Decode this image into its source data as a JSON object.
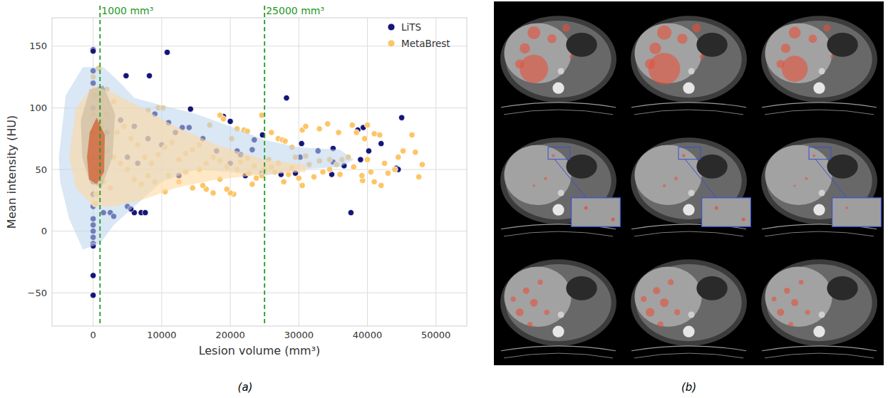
{
  "chart_data": {
    "type": "scatter",
    "x_label": "Lesion volume (mm³)",
    "y_label": "Mean intensity (HU)",
    "xlim": [
      -6000,
      54500
    ],
    "ylim": [
      -77,
      173
    ],
    "xticks": [
      0,
      10000,
      20000,
      30000,
      40000,
      50000
    ],
    "yticks": [
      {
        "value": -50,
        "label": "−50"
      },
      0,
      50,
      100,
      150
    ],
    "grid": true,
    "legend": "upper right",
    "annotations": [
      {
        "x": 1000,
        "label": "1000 mm³",
        "color": "#1f9a1f",
        "line_style": "dashed"
      },
      {
        "x": 25000,
        "label": "25000 mm³",
        "color": "#1f9a1f",
        "line_style": "dashed"
      }
    ],
    "series": [
      {
        "name": "LiTS",
        "color": "#15157a",
        "marker": "circle",
        "x": [
          0,
          0,
          10800,
          4800,
          8200,
          14200,
          19000,
          20000,
          28200,
          37600,
          0,
          0,
          45000,
          44200,
          44500,
          42000,
          40200,
          39400,
          38600,
          39000,
          36600,
          34800,
          35000,
          35000,
          32800,
          30200,
          29500,
          27400,
          24600,
          24700,
          23500,
          23200,
          22200,
          21000,
          21500,
          20000,
          30400,
          5000,
          6000,
          7000,
          7600,
          5500,
          2500,
          3000,
          1500,
          0,
          0,
          0,
          0,
          0,
          0,
          0,
          0,
          0,
          0,
          0,
          0,
          0,
          0,
          2000,
          4000,
          6000,
          8000,
          10000,
          12000,
          13000,
          14000,
          11000,
          9000,
          5000,
          6500,
          12500,
          16000,
          18000
        ],
        "values": [
          147,
          146,
          145,
          126,
          126,
          99,
          93,
          89,
          108,
          15,
          -36,
          -52,
          92,
          51,
          50,
          71,
          65,
          84,
          82,
          58,
          53,
          46,
          67,
          56,
          65,
          60,
          47,
          46,
          47,
          78,
          74,
          66,
          45,
          65,
          62,
          55,
          71,
          20,
          15,
          15,
          15,
          18,
          15,
          12,
          15,
          0,
          5,
          10,
          -5,
          -10,
          -12,
          20,
          30,
          40,
          60,
          80,
          100,
          120,
          130,
          80,
          90,
          85,
          75,
          70,
          80,
          84,
          84,
          88,
          95,
          60,
          55,
          45,
          75,
          65
        ],
        "density_regions": [
          [
            [
              -5000,
              60
            ],
            [
              -4000,
              110
            ],
            [
              -1500,
              133
            ],
            [
              1500,
              133
            ],
            [
              4000,
              120
            ],
            [
              6000,
              108
            ],
            [
              10000,
              102
            ],
            [
              15000,
              95
            ],
            [
              20000,
              85
            ],
            [
              25000,
              74
            ],
            [
              30000,
              68
            ],
            [
              36000,
              66
            ],
            [
              38000,
              58
            ],
            [
              36000,
              52
            ],
            [
              30000,
              50
            ],
            [
              25000,
              45
            ],
            [
              20000,
              48
            ],
            [
              15000,
              50
            ],
            [
              10000,
              40
            ],
            [
              6000,
              20
            ],
            [
              3000,
              5
            ],
            [
              1000,
              -10
            ],
            [
              -1500,
              -15
            ],
            [
              -3500,
              10
            ],
            [
              -4800,
              40
            ]
          ],
          [
            [
              -1800,
              90
            ],
            [
              -500,
              115
            ],
            [
              1500,
              118
            ],
            [
              3200,
              95
            ],
            [
              2800,
              60
            ],
            [
              1200,
              35
            ],
            [
              -500,
              40
            ],
            [
              -1600,
              60
            ]
          ]
        ]
      },
      {
        "name": "MetaBrest",
        "color": "#fcc566",
        "marker": "circle",
        "x": [
          800,
          1000,
          0,
          2000,
          3000,
          9500,
          10200,
          8000,
          17000,
          18500,
          19000,
          21000,
          22000,
          22500,
          24600,
          26000,
          27000,
          27600,
          28000,
          29000,
          30500,
          31000,
          33000,
          34200,
          35800,
          37800,
          38400,
          39600,
          40000,
          41000,
          41800,
          46500,
          47000,
          45200,
          48000,
          47500,
          44000,
          43000,
          42000,
          41000,
          40500,
          39300,
          39200,
          37200,
          36300,
          35500,
          34500,
          33000,
          32200,
          31500,
          30500,
          30000,
          28500,
          27800,
          26500,
          25600,
          24600,
          23800,
          23200,
          22700,
          21000,
          20500,
          20000,
          20200,
          19500,
          18500,
          17500,
          16500,
          16000,
          15500,
          14500,
          13500,
          12500,
          11000,
          10500,
          9000,
          8000,
          7000,
          6000,
          5000,
          4000,
          3000,
          2000,
          1000,
          500,
          1500,
          2500,
          3500,
          4500,
          5500,
          6500,
          7500,
          8500,
          9500,
          10500,
          11500,
          12500,
          13500,
          14500,
          15500,
          16500,
          17500,
          18500,
          19500,
          21500,
          22500,
          23500,
          25000,
          26000,
          27000,
          29000,
          29500,
          31000,
          33500,
          34500,
          36000,
          38000,
          40000,
          42500,
          44500,
          1000,
          2000,
          500,
          300,
          200,
          1200,
          700,
          0,
          0,
          0
        ],
        "values": [
          132,
          110,
          125,
          115,
          105,
          100,
          100,
          98,
          86,
          94,
          91,
          83,
          82,
          81,
          94,
          80,
          75,
          74,
          73,
          68,
          82,
          85,
          83,
          87,
          80,
          86,
          80,
          75,
          86,
          79,
          78,
          78,
          64,
          65,
          54,
          44,
          50,
          47,
          37,
          40,
          48,
          41,
          45,
          60,
          58,
          54,
          50,
          57,
          44,
          54,
          37,
          43,
          46,
          40,
          48,
          58,
          45,
          43,
          38,
          47,
          50,
          30,
          31,
          75,
          34,
          42,
          31,
          34,
          37,
          50,
          35,
          48,
          40,
          45,
          32,
          40,
          45,
          38,
          42,
          50,
          55,
          60,
          65,
          70,
          50,
          40,
          35,
          80,
          85,
          75,
          70,
          60,
          55,
          62,
          68,
          72,
          58,
          63,
          66,
          70,
          55,
          60,
          57,
          52,
          56,
          59,
          53,
          50,
          52,
          55,
          51,
          60,
          61,
          48,
          58,
          46,
          52,
          58,
          55,
          60,
          90,
          95,
          30,
          22,
          110,
          85,
          60,
          45,
          75,
          95
        ],
        "density_regions": [
          [
            [
              -3500,
              60
            ],
            [
              -2500,
              100
            ],
            [
              0,
              118
            ],
            [
              3000,
              112
            ],
            [
              7000,
              100
            ],
            [
              12000,
              85
            ],
            [
              18000,
              70
            ],
            [
              25000,
              58
            ],
            [
              31000,
              54
            ],
            [
              31000,
              48
            ],
            [
              25000,
              46
            ],
            [
              18000,
              42
            ],
            [
              12000,
              35
            ],
            [
              7000,
              25
            ],
            [
              3000,
              20
            ],
            [
              0,
              20
            ],
            [
              -2500,
              35
            ]
          ],
          [
            [
              -900,
              60
            ],
            [
              -500,
              80
            ],
            [
              500,
              92
            ],
            [
              1700,
              78
            ],
            [
              1600,
              48
            ],
            [
              500,
              38
            ],
            [
              -600,
              42
            ]
          ]
        ]
      }
    ]
  },
  "figure": {
    "panel_labels": [
      "(a)",
      "(b)"
    ]
  }
}
